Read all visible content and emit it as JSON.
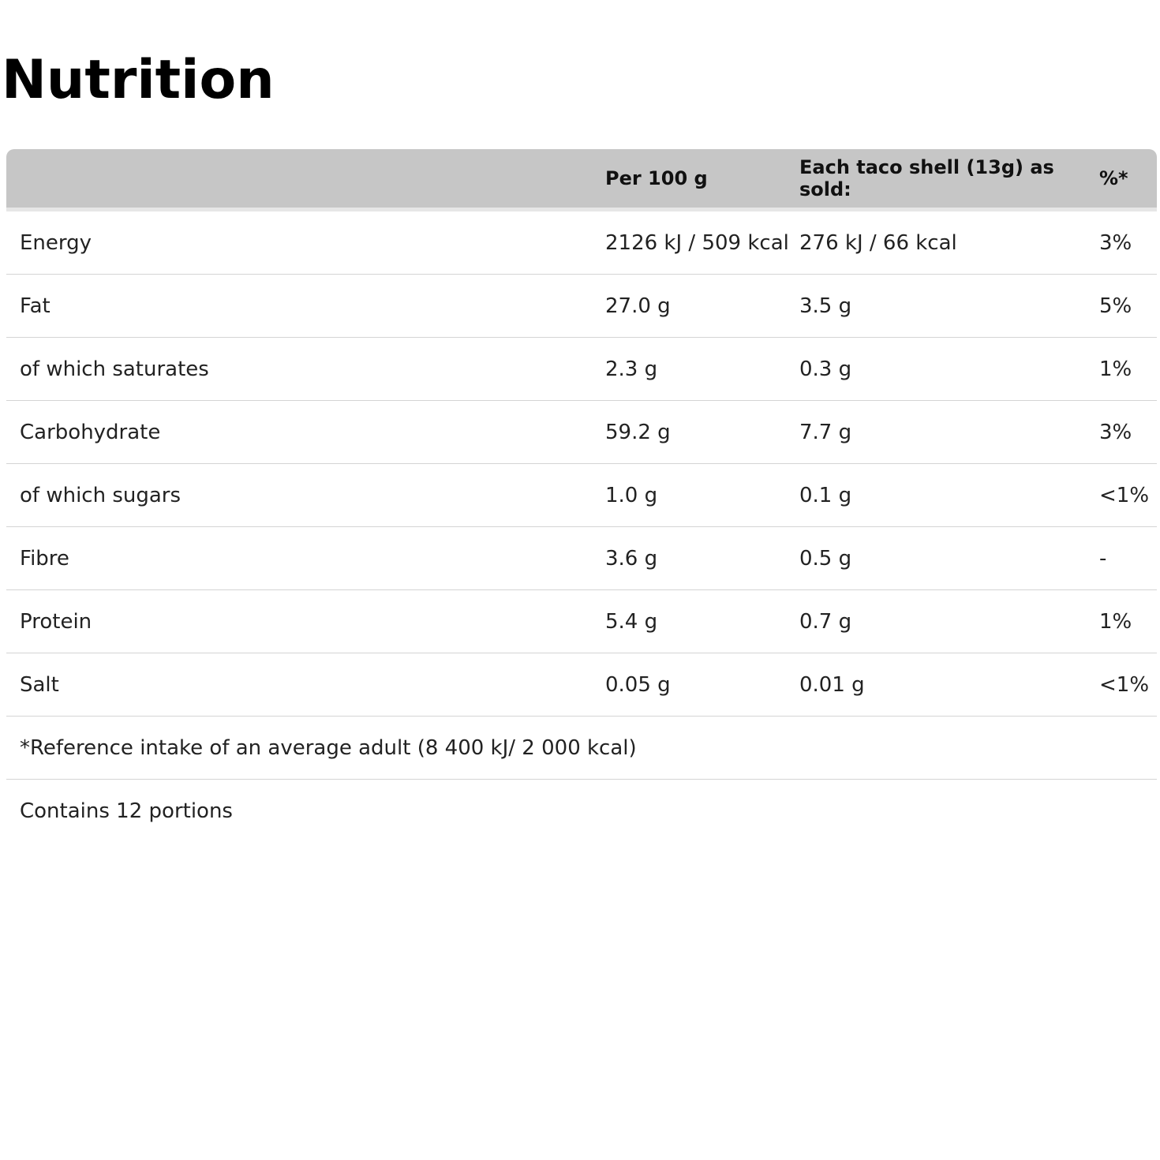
{
  "title": "Nutrition",
  "table": {
    "header": [
      "",
      "Per 100 g",
      "Each taco shell (13g) as sold:",
      "%*"
    ],
    "rows": [
      [
        "Energy",
        "2126 kJ / 509 kcal",
        "276 kJ / 66 kcal",
        "3%"
      ],
      [
        "Fat",
        "27.0 g",
        "3.5 g",
        "5%"
      ],
      [
        "of which saturates",
        "2.3 g",
        "0.3 g",
        "1%"
      ],
      [
        "Carbohydrate",
        "59.2 g",
        "7.7 g",
        "3%"
      ],
      [
        "of which sugars",
        "1.0 g",
        "0.1 g",
        "<1%"
      ],
      [
        "Fibre",
        "3.6 g",
        "0.5 g",
        "-"
      ],
      [
        "Protein",
        "5.4 g",
        "0.7 g",
        "1%"
      ],
      [
        "Salt",
        "0.05 g",
        "0.01 g",
        "<1%"
      ]
    ],
    "notes": [
      "*Reference intake of an average adult (8 400 kJ/ 2 000 kcal)",
      "Contains 12 portions"
    ]
  }
}
